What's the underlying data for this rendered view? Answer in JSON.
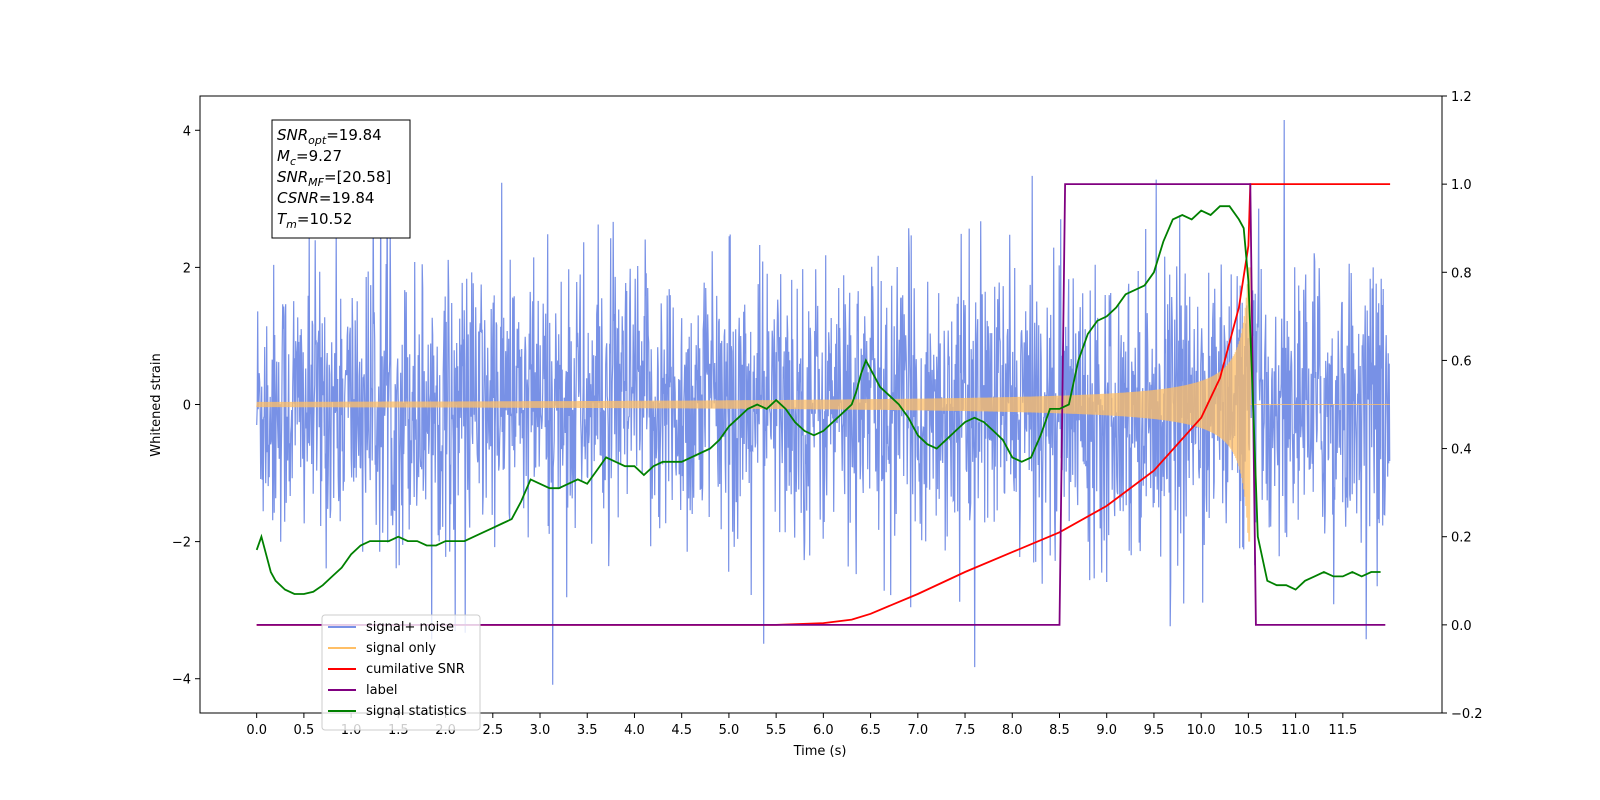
{
  "chart_data": {
    "type": "line",
    "xlabel": "Time (s)",
    "ylabel": "Whitened strain",
    "xlim": [
      -0.6,
      12.55
    ],
    "ylim": [
      -4.5,
      4.5
    ],
    "y2lim": [
      -0.2,
      1.2
    ],
    "xticks": [
      "0.0",
      "0.5",
      "1.0",
      "1.5",
      "2.0",
      "2.5",
      "3.0",
      "3.5",
      "4.0",
      "4.5",
      "5.0",
      "5.5",
      "6.0",
      "6.5",
      "7.0",
      "7.5",
      "8.0",
      "8.5",
      "9.0",
      "9.5",
      "10.0",
      "10.5",
      "11.0",
      "11.5"
    ],
    "yticks": [
      "4",
      "2",
      "0",
      "−2",
      "−4"
    ],
    "y2ticks": [
      "1.2",
      "1.0",
      "0.8",
      "0.6",
      "0.4",
      "0.2",
      "0.0",
      "−0.2"
    ],
    "annotation": [
      {
        "base": "SNR",
        "sub": "opt",
        "rest": "=19.84"
      },
      {
        "base": "M",
        "sub": "c",
        "rest": "=9.27"
      },
      {
        "base": "SNR",
        "sub": "MF",
        "rest": "=[20.58]"
      },
      {
        "base": "CSNR",
        "sub": "",
        "rest": "=19.84"
      },
      {
        "base": "T",
        "sub": "m",
        "rest": "=10.52"
      }
    ],
    "legend_position": "lower-left",
    "grid": false,
    "series": [
      {
        "name": "signal+ noise",
        "color": "#7891e6",
        "axis": "left",
        "kind": "noise",
        "x_range": [
          0.0,
          12.0
        ],
        "amplitude_rms": 1.0
      },
      {
        "name": "signal only",
        "color": "#ffbf66",
        "axis": "left",
        "kind": "chirp",
        "x_range": [
          0.0,
          12.0
        ],
        "merger_time": 10.52,
        "peak_amplitude": 2.0
      },
      {
        "name": "cumilative SNR",
        "color": "#ff0000",
        "axis": "right",
        "x": [
          0,
          5.5,
          6.0,
          6.3,
          6.5,
          7.0,
          7.5,
          8.0,
          8.5,
          9.0,
          9.5,
          10.0,
          10.2,
          10.4,
          10.5,
          10.52,
          10.55,
          11.0,
          12.0
        ],
        "y": [
          0,
          0,
          0.004,
          0.012,
          0.025,
          0.07,
          0.12,
          0.165,
          0.21,
          0.27,
          0.35,
          0.47,
          0.56,
          0.72,
          0.86,
          1.0,
          1.0,
          1.0,
          1.0
        ]
      },
      {
        "name": "label",
        "color": "#800080",
        "axis": "right",
        "x": [
          0,
          8.5,
          8.56,
          10.52,
          10.58,
          11.95
        ],
        "y": [
          0,
          0,
          1.0,
          1.0,
          0,
          0
        ]
      },
      {
        "name": "signal statistics",
        "color": "#008000",
        "axis": "right",
        "x": [
          0.0,
          0.05,
          0.1,
          0.15,
          0.2,
          0.3,
          0.4,
          0.5,
          0.6,
          0.7,
          0.8,
          0.9,
          1.0,
          1.1,
          1.2,
          1.3,
          1.4,
          1.5,
          1.6,
          1.7,
          1.8,
          1.9,
          2.0,
          2.1,
          2.2,
          2.3,
          2.4,
          2.5,
          2.6,
          2.7,
          2.8,
          2.9,
          3.0,
          3.1,
          3.2,
          3.3,
          3.4,
          3.5,
          3.6,
          3.7,
          3.8,
          3.9,
          4.0,
          4.1,
          4.2,
          4.3,
          4.4,
          4.5,
          4.6,
          4.7,
          4.8,
          4.9,
          5.0,
          5.1,
          5.2,
          5.3,
          5.4,
          5.5,
          5.6,
          5.7,
          5.8,
          5.9,
          6.0,
          6.1,
          6.2,
          6.3,
          6.35,
          6.4,
          6.45,
          6.5,
          6.6,
          6.7,
          6.8,
          6.9,
          7.0,
          7.1,
          7.2,
          7.3,
          7.4,
          7.5,
          7.6,
          7.7,
          7.8,
          7.9,
          8.0,
          8.1,
          8.2,
          8.3,
          8.4,
          8.5,
          8.6,
          8.7,
          8.8,
          8.9,
          9.0,
          9.1,
          9.2,
          9.3,
          9.4,
          9.5,
          9.6,
          9.7,
          9.8,
          9.9,
          10.0,
          10.1,
          10.2,
          10.3,
          10.4,
          10.45,
          10.5,
          10.55,
          10.6,
          10.7,
          10.8,
          10.9,
          11.0,
          11.1,
          11.2,
          11.3,
          11.4,
          11.5,
          11.6,
          11.7,
          11.8,
          11.9
        ],
        "y": [
          0.17,
          0.2,
          0.16,
          0.12,
          0.1,
          0.08,
          0.07,
          0.07,
          0.075,
          0.09,
          0.11,
          0.13,
          0.16,
          0.18,
          0.19,
          0.19,
          0.19,
          0.2,
          0.19,
          0.19,
          0.18,
          0.18,
          0.19,
          0.19,
          0.19,
          0.2,
          0.21,
          0.22,
          0.23,
          0.24,
          0.28,
          0.33,
          0.32,
          0.31,
          0.31,
          0.32,
          0.33,
          0.32,
          0.35,
          0.38,
          0.37,
          0.36,
          0.36,
          0.34,
          0.36,
          0.37,
          0.37,
          0.37,
          0.38,
          0.39,
          0.4,
          0.42,
          0.45,
          0.47,
          0.49,
          0.5,
          0.49,
          0.51,
          0.49,
          0.46,
          0.44,
          0.43,
          0.44,
          0.46,
          0.48,
          0.5,
          0.53,
          0.57,
          0.6,
          0.58,
          0.54,
          0.52,
          0.5,
          0.47,
          0.43,
          0.41,
          0.4,
          0.42,
          0.44,
          0.46,
          0.47,
          0.46,
          0.44,
          0.42,
          0.38,
          0.37,
          0.38,
          0.43,
          0.49,
          0.49,
          0.5,
          0.6,
          0.66,
          0.69,
          0.7,
          0.72,
          0.75,
          0.76,
          0.77,
          0.8,
          0.87,
          0.92,
          0.93,
          0.92,
          0.94,
          0.93,
          0.95,
          0.95,
          0.92,
          0.9,
          0.78,
          0.5,
          0.2,
          0.1,
          0.09,
          0.09,
          0.08,
          0.1,
          0.11,
          0.12,
          0.11,
          0.11,
          0.12,
          0.11,
          0.12,
          0.12
        ]
      }
    ]
  }
}
